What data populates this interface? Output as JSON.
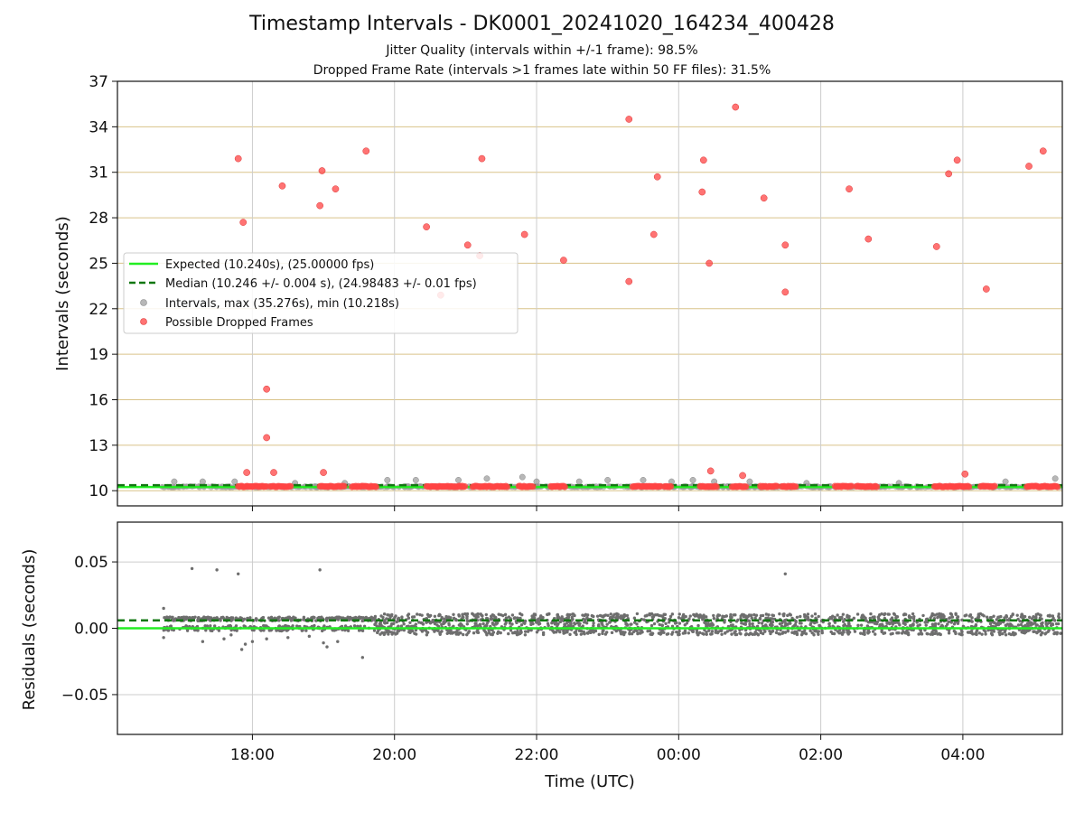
{
  "chart_data": [
    {
      "type": "scatter",
      "title": "Timestamp Intervals - DK0001_20241020_164234_400428",
      "subtitle_1": "Jitter Quality (intervals within +/-1 frame): 98.5%",
      "subtitle_2": "Dropped Frame Rate (intervals >1 frames late within 50 FF files): 31.5%",
      "ylabel": "Intervals (seconds)",
      "xlim_hours": [
        16.1,
        29.4
      ],
      "ylim": [
        9,
        37
      ],
      "yticks": [
        "10",
        "13",
        "16",
        "19",
        "22",
        "25",
        "28",
        "31",
        "34",
        "37"
      ],
      "ytick_values": [
        10,
        13,
        16,
        19,
        22,
        25,
        28,
        31,
        34,
        37
      ],
      "legend": {
        "placement": "center-left",
        "expected": "Expected (10.240s), (25.00000 fps)",
        "median": "Median (10.246 +/- 0.004 s), (24.98483 +/- 0.01 fps)",
        "intervals": "Intervals, max (35.276s), min (10.218s)",
        "dropped": "Possible Dropped Frames"
      },
      "colors": {
        "expected": "#22ee22",
        "median": "#117711",
        "intervals": "#999999",
        "dropped": "#ff4444",
        "grid_h": "#d9c38a",
        "grid_v": "#cccccc"
      },
      "expected_value": 10.24,
      "median_value": 10.246,
      "dropped_points": [
        [
          17.8,
          31.9
        ],
        [
          17.87,
          27.7
        ],
        [
          17.92,
          11.2
        ],
        [
          18.2,
          16.7
        ],
        [
          18.2,
          13.5
        ],
        [
          18.3,
          11.2
        ],
        [
          18.42,
          30.1
        ],
        [
          18.95,
          28.8
        ],
        [
          18.98,
          31.1
        ],
        [
          19.0,
          11.2
        ],
        [
          19.17,
          29.9
        ],
        [
          19.6,
          32.4
        ],
        [
          20.45,
          27.4
        ],
        [
          20.65,
          22.9
        ],
        [
          21.03,
          26.2
        ],
        [
          21.2,
          25.5
        ],
        [
          21.23,
          31.9
        ],
        [
          21.83,
          26.9
        ],
        [
          22.38,
          25.2
        ],
        [
          23.3,
          23.8
        ],
        [
          23.3,
          34.5
        ],
        [
          23.65,
          26.9
        ],
        [
          23.7,
          30.7
        ],
        [
          24.33,
          29.7
        ],
        [
          24.35,
          31.8
        ],
        [
          24.43,
          25.0
        ],
        [
          24.45,
          11.3
        ],
        [
          24.8,
          35.3
        ],
        [
          24.9,
          11.0
        ],
        [
          25.2,
          29.3
        ],
        [
          25.5,
          26.2
        ],
        [
          25.5,
          23.1
        ],
        [
          26.4,
          29.9
        ],
        [
          26.67,
          26.6
        ],
        [
          27.63,
          26.1
        ],
        [
          27.8,
          30.9
        ],
        [
          27.92,
          31.8
        ],
        [
          28.03,
          11.1
        ],
        [
          28.33,
          23.3
        ],
        [
          28.93,
          31.4
        ],
        [
          29.13,
          32.4
        ]
      ],
      "dropped_clusters": [
        [
          17.8,
          18.2
        ],
        [
          18.25,
          18.55
        ],
        [
          18.95,
          19.3
        ],
        [
          19.4,
          19.75
        ],
        [
          20.45,
          21.0
        ],
        [
          21.1,
          21.6
        ],
        [
          21.75,
          21.95
        ],
        [
          22.2,
          22.4
        ],
        [
          23.35,
          23.75
        ],
        [
          23.8,
          23.9
        ],
        [
          24.3,
          24.55
        ],
        [
          24.75,
          24.95
        ],
        [
          25.15,
          25.4
        ],
        [
          25.45,
          25.65
        ],
        [
          26.2,
          26.45
        ],
        [
          26.5,
          26.8
        ],
        [
          27.6,
          28.1
        ],
        [
          28.25,
          28.45
        ],
        [
          28.9,
          29.35
        ]
      ],
      "interval_outliers": [
        [
          16.9,
          10.6
        ],
        [
          17.3,
          10.6
        ],
        [
          17.75,
          10.6
        ],
        [
          19.9,
          10.7
        ],
        [
          20.3,
          10.7
        ],
        [
          20.9,
          10.7
        ],
        [
          21.3,
          10.8
        ],
        [
          21.8,
          10.9
        ],
        [
          22.0,
          10.6
        ],
        [
          22.6,
          10.6
        ],
        [
          23.0,
          10.7
        ],
        [
          23.5,
          10.7
        ],
        [
          23.9,
          10.6
        ],
        [
          24.5,
          10.6
        ],
        [
          25.0,
          10.6
        ],
        [
          25.8,
          10.5
        ],
        [
          27.1,
          10.5
        ],
        [
          28.6,
          10.6
        ],
        [
          29.3,
          10.8
        ],
        [
          24.2,
          10.7
        ],
        [
          19.3,
          10.5
        ],
        [
          18.6,
          10.5
        ]
      ]
    },
    {
      "type": "scatter",
      "ylabel": "Residuals (seconds)",
      "xlabel": "Time (UTC)",
      "xlim_hours": [
        16.1,
        29.4
      ],
      "ylim": [
        -0.08,
        0.08
      ],
      "yticks": [
        "0.05",
        "0.00",
        "−0.05"
      ],
      "ytick_values": [
        0.05,
        0.0,
        -0.05
      ],
      "xticks": [
        "18:00",
        "20:00",
        "22:00",
        "00:00",
        "02:00",
        "04:00"
      ],
      "xtick_hours": [
        18,
        20,
        22,
        24,
        26,
        28
      ],
      "expected_residual": 0.0,
      "median_residual": 0.006,
      "colors": {
        "points": "#6e6e6e",
        "expected": "#22ee22",
        "median": "#117711",
        "grid": "#cccccc"
      },
      "residual_outliers": [
        [
          16.75,
          0.015
        ],
        [
          16.75,
          -0.007
        ],
        [
          17.15,
          0.045
        ],
        [
          17.5,
          0.044
        ],
        [
          17.8,
          0.041
        ],
        [
          18.95,
          0.044
        ],
        [
          19.55,
          -0.022
        ],
        [
          17.85,
          -0.016
        ],
        [
          17.9,
          -0.012
        ],
        [
          18.0,
          -0.01
        ],
        [
          18.2,
          -0.008
        ],
        [
          18.5,
          -0.007
        ],
        [
          19.0,
          -0.011
        ],
        [
          19.05,
          -0.014
        ],
        [
          19.2,
          -0.01
        ],
        [
          17.3,
          -0.01
        ],
        [
          17.6,
          -0.008
        ],
        [
          25.5,
          0.041
        ],
        [
          17.7,
          -0.005
        ],
        [
          18.8,
          -0.006
        ]
      ]
    }
  ]
}
